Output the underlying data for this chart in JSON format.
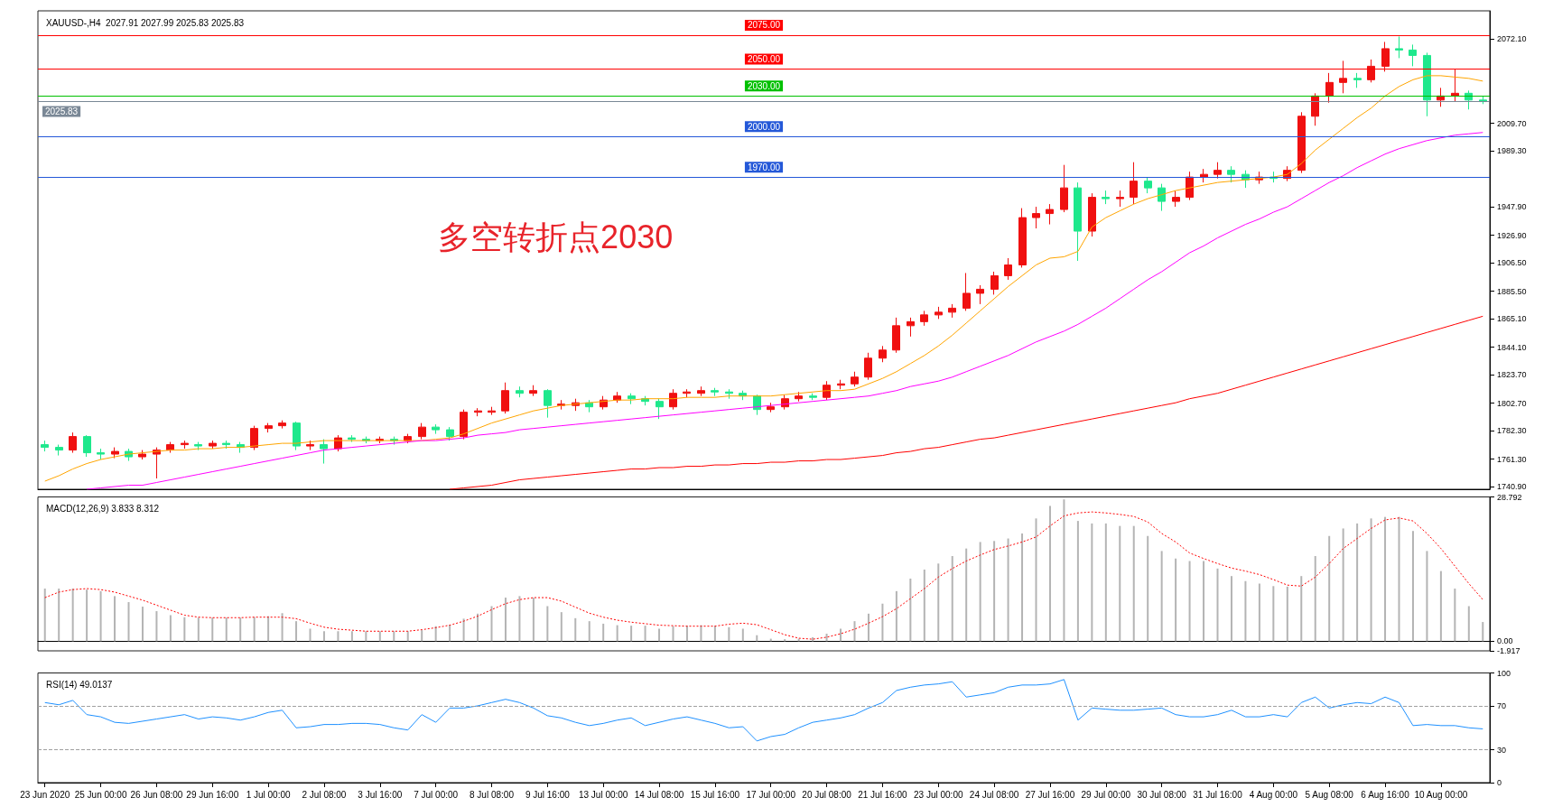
{
  "chart_data": [
    {
      "type": "candlestick",
      "title": "XAUUSD-,H4  2027.91 2027.99 2025.83 2025.83",
      "annotations": [
        "多空转折点2030"
      ],
      "tick_labels": "y",
      "colors": [
        "#1ee88c",
        "#1ee88c",
        "#f01010",
        "#1ee88c",
        "#1ee88c",
        "#f01010",
        "#1ee88c",
        "#f01010",
        "#f01010",
        "#f01010",
        "#f01010",
        "#1ee88c",
        "#f01010",
        "#1ee88c",
        "#1ee88c",
        "#f01010",
        "#f01010",
        "#f01010",
        "#1ee88c",
        "#f01010",
        "#1ee88c",
        "#f01010",
        "#1ee88c",
        "#1ee88c",
        "#f01010",
        "#1ee88c",
        "#f01010",
        "#f01010",
        "#1ee88c",
        "#1ee88c",
        "#f01010",
        "#f01010",
        "#f01010",
        "#f01010",
        "#1ee88c",
        "#f01010",
        "#1ee88c",
        "#f01010",
        "#f01010",
        "#1ee88c",
        "#f01010",
        "#f01010",
        "#1ee88c",
        "#1ee88c",
        "#1ee88c",
        "#f01010",
        "#f01010",
        "#f01010",
        "#1ee88c",
        "#1ee88c",
        "#1ee88c",
        "#1ee88c",
        "#f01010",
        "#f01010",
        "#f01010",
        "#1ee88c",
        "#f01010",
        "#f01010",
        "#f01010",
        "#f01010",
        "#f01010",
        "#f01010",
        "#f01010",
        "#f01010",
        "#f01010",
        "#f01010",
        "#f01010",
        "#f01010",
        "#f01010",
        "#f01010",
        "#f01010",
        "#f01010",
        "#f01010",
        "#f01010",
        "#1ee88c",
        "#f01010",
        "#1ee88c",
        "#f01010",
        "#f01010",
        "#1ee88c",
        "#1ee88c",
        "#f01010",
        "#f01010",
        "#f01010",
        "#f01010",
        "#1ee88c",
        "#1ee88c",
        "#f01010",
        "#1ee88c",
        "#f01010",
        "#f01010",
        "#f01010",
        "#f01010",
        "#f01010",
        "#1ee88c",
        "#f01010",
        "#f01010",
        "#1ee88c",
        "#1ee88c",
        "#1ee88c",
        "#f01010",
        "#f01010",
        "#1ee88c",
        "#1ee88c"
      ],
      "categories": [
        null,
        null,
        null,
        null,
        null,
        null,
        null,
        null,
        null,
        null,
        null,
        null,
        null,
        null,
        null,
        null,
        null,
        null,
        null,
        null,
        null,
        null,
        null,
        null,
        null,
        null,
        null,
        null,
        null,
        null,
        null,
        null,
        null,
        null,
        null,
        null,
        null,
        null,
        null,
        null,
        null,
        null,
        null,
        null,
        null,
        null,
        null,
        null,
        null,
        null,
        null,
        null,
        null,
        null,
        null,
        null,
        null,
        null,
        null,
        null,
        null,
        null,
        null,
        null,
        null,
        null,
        null,
        null,
        null,
        null,
        null,
        null,
        null,
        null,
        null,
        null,
        null,
        null,
        null,
        null,
        null,
        null,
        null,
        null,
        null,
        null,
        null,
        null,
        null,
        null,
        null,
        null,
        null,
        null,
        null,
        null,
        null,
        null,
        null,
        null,
        null,
        null,
        null,
        null
      ],
      "ohlc": [
        [
          1772,
          1775,
          1767,
          1770
        ],
        [
          1770,
          1772,
          1764,
          1768
        ],
        [
          1768,
          1781,
          1766,
          1778
        ],
        [
          1778,
          1779,
          1763,
          1766
        ],
        [
          1766,
          1769,
          1761,
          1765
        ],
        [
          1765,
          1770,
          1762,
          1767
        ],
        [
          1767,
          1769,
          1760,
          1763
        ],
        [
          1763,
          1768,
          1761,
          1765
        ],
        [
          1765,
          1770,
          1747,
          1768
        ],
        [
          1768,
          1774,
          1766,
          1772
        ],
        [
          1772,
          1775,
          1769,
          1773
        ],
        [
          1772,
          1774,
          1768,
          1771
        ],
        [
          1771,
          1775,
          1769,
          1773
        ],
        [
          1773,
          1775,
          1769,
          1772
        ],
        [
          1772,
          1774,
          1766,
          1770
        ],
        [
          1770,
          1786,
          1768,
          1784
        ],
        [
          1784,
          1788,
          1781,
          1786
        ],
        [
          1786,
          1790,
          1784,
          1788
        ],
        [
          1788,
          1789,
          1768,
          1771
        ],
        [
          1771,
          1775,
          1768,
          1772
        ],
        [
          1772,
          1776,
          1758,
          1769
        ],
        [
          1769,
          1779,
          1767,
          1777
        ],
        [
          1777,
          1779,
          1774,
          1776
        ],
        [
          1776,
          1778,
          1773,
          1775
        ],
        [
          1775,
          1778,
          1773,
          1776
        ],
        [
          1776,
          1778,
          1772,
          1775
        ],
        [
          1775,
          1780,
          1773,
          1778
        ],
        [
          1778,
          1788,
          1776,
          1785
        ],
        [
          1785,
          1787,
          1780,
          1783
        ],
        [
          1783,
          1785,
          1775,
          1778
        ],
        [
          1778,
          1798,
          1776,
          1796
        ],
        [
          1796,
          1799,
          1793,
          1797
        ],
        [
          1796,
          1800,
          1794,
          1797
        ],
        [
          1797,
          1818,
          1795,
          1812
        ],
        [
          1812,
          1815,
          1807,
          1810
        ],
        [
          1810,
          1816,
          1808,
          1812
        ],
        [
          1812,
          1813,
          1792,
          1801
        ],
        [
          1801,
          1805,
          1798,
          1802
        ],
        [
          1801,
          1806,
          1797,
          1803
        ],
        [
          1803,
          1805,
          1796,
          1800
        ],
        [
          1800,
          1808,
          1798,
          1805
        ],
        [
          1805,
          1811,
          1803,
          1808
        ],
        [
          1808,
          1810,
          1802,
          1806
        ],
        [
          1806,
          1808,
          1801,
          1804
        ],
        [
          1804,
          1806,
          1791,
          1800
        ],
        [
          1800,
          1813,
          1798,
          1810
        ],
        [
          1810,
          1813,
          1807,
          1811
        ],
        [
          1810,
          1815,
          1808,
          1812
        ],
        [
          1812,
          1814,
          1808,
          1811
        ],
        [
          1811,
          1813,
          1806,
          1810
        ],
        [
          1810,
          1812,
          1805,
          1808
        ],
        [
          1808,
          1809,
          1794,
          1798
        ],
        [
          1798,
          1803,
          1796,
          1800
        ],
        [
          1800,
          1809,
          1798,
          1806
        ],
        [
          1806,
          1811,
          1804,
          1808
        ],
        [
          1808,
          1810,
          1805,
          1807
        ],
        [
          1807,
          1819,
          1805,
          1816
        ],
        [
          1816,
          1820,
          1813,
          1817
        ],
        [
          1817,
          1826,
          1815,
          1822
        ],
        [
          1822,
          1840,
          1820,
          1836
        ],
        [
          1836,
          1845,
          1833,
          1842
        ],
        [
          1842,
          1866,
          1840,
          1860
        ],
        [
          1860,
          1866,
          1852,
          1863
        ],
        [
          1863,
          1871,
          1860,
          1868
        ],
        [
          1868,
          1874,
          1865,
          1870
        ],
        [
          1870,
          1876,
          1866,
          1873
        ],
        [
          1873,
          1899,
          1871,
          1884
        ],
        [
          1884,
          1890,
          1876,
          1887
        ],
        [
          1887,
          1900,
          1883,
          1897
        ],
        [
          1897,
          1910,
          1894,
          1905
        ],
        [
          1905,
          1947,
          1903,
          1940
        ],
        [
          1940,
          1948,
          1932,
          1943
        ],
        [
          1943,
          1950,
          1935,
          1946
        ],
        [
          1946,
          1979,
          1944,
          1962
        ],
        [
          1962,
          1966,
          1908,
          1930
        ],
        [
          1930,
          1958,
          1926,
          1955
        ],
        [
          1955,
          1960,
          1950,
          1954
        ],
        [
          1954,
          1960,
          1948,
          1955
        ],
        [
          1955,
          1981,
          1950,
          1967
        ],
        [
          1967,
          1970,
          1958,
          1962
        ],
        [
          1962,
          1965,
          1945,
          1952
        ],
        [
          1952,
          1960,
          1948,
          1955
        ],
        [
          1955,
          1974,
          1953,
          1970
        ],
        [
          1970,
          1976,
          1966,
          1972
        ],
        [
          1972,
          1981,
          1969,
          1975
        ],
        [
          1975,
          1978,
          1966,
          1972
        ],
        [
          1972,
          1975,
          1962,
          1968
        ],
        [
          1968,
          1974,
          1965,
          1970
        ],
        [
          1970,
          1974,
          1966,
          1969
        ],
        [
          1969,
          1978,
          1967,
          1975
        ],
        [
          1975,
          2018,
          1973,
          2015
        ],
        [
          2015,
          2032,
          2008,
          2030
        ],
        [
          2030,
          2047,
          2025,
          2040
        ],
        [
          2040,
          2056,
          2032,
          2043
        ],
        [
          2043,
          2047,
          2036,
          2042
        ],
        [
          2042,
          2057,
          2040,
          2052
        ],
        [
          2052,
          2070,
          2048,
          2065
        ],
        [
          2065,
          2074,
          2058,
          2064
        ],
        [
          2064,
          2068,
          2052,
          2060
        ],
        [
          2060,
          2062,
          2015,
          2027
        ],
        [
          2027,
          2036,
          2022,
          2030
        ],
        [
          2030,
          2050,
          2026,
          2032
        ],
        [
          2032,
          2034,
          2020,
          2027
        ],
        [
          2027,
          2030,
          2024,
          2025.83
        ]
      ],
      "series": [
        {
          "type": "line",
          "color": "#ffa500",
          "values": [
            1745,
            1749,
            1754,
            1758,
            1761,
            1763,
            1765,
            1766,
            1767,
            1768,
            1768,
            1769,
            1769,
            1770,
            1770,
            1771,
            1772,
            1773,
            1773,
            1774,
            1775,
            1775,
            1775,
            1775,
            1775,
            1775,
            1775,
            1775,
            1776,
            1777,
            1780,
            1784,
            1788,
            1791,
            1794,
            1797,
            1799,
            1801,
            1802,
            1803,
            1804,
            1805,
            1805,
            1806,
            1806,
            1806,
            1807,
            1807,
            1807,
            1808,
            1808,
            1808,
            1808,
            1809,
            1810,
            1811,
            1812,
            1812,
            1813,
            1817,
            1821,
            1826,
            1832,
            1838,
            1845,
            1853,
            1862,
            1871,
            1880,
            1889,
            1897,
            1905,
            1910,
            1911,
            1915,
            1933,
            1940,
            1945,
            1950,
            1954,
            1957,
            1960,
            1962,
            1964,
            1966,
            1967,
            1968,
            1969,
            1970,
            1972,
            1980,
            1990,
            1998,
            2006,
            2014,
            2021,
            2030,
            2037,
            2042,
            2045,
            2045,
            2044,
            2043,
            2041
          ]
        },
        {
          "type": "line",
          "color": "#ff00ff",
          "values": [
            null,
            null,
            null,
            1739,
            1740,
            1741,
            1742,
            1742,
            1744,
            1746,
            1748,
            1750,
            1752,
            1754,
            1756,
            1758,
            1760,
            1762,
            1764,
            1766,
            1768,
            1769,
            1770,
            1771,
            1772,
            1773,
            1774,
            1775,
            1775,
            1776,
            1777,
            1779,
            1780,
            1781,
            1783,
            1784,
            1785,
            1786,
            1787,
            1788,
            1789,
            1790,
            1791,
            1792,
            1793,
            1794,
            1795,
            1796,
            1797,
            1798,
            1799,
            1800,
            1801,
            1802,
            1803,
            1804,
            1805,
            1806,
            1807,
            1808,
            1810,
            1812,
            1815,
            1817,
            1819,
            1822,
            1826,
            1830,
            1834,
            1838,
            1843,
            1848,
            1852,
            1856,
            1861,
            1867,
            1873,
            1880,
            1887,
            1894,
            1900,
            1907,
            1914,
            1919,
            1925,
            1930,
            1935,
            1939,
            1944,
            1948,
            1954,
            1960,
            1966,
            1971,
            1977,
            1982,
            1987,
            1991,
            1994,
            1997,
            1999,
            2001,
            2002,
            2003
          ]
        },
        {
          "type": "line",
          "color": "#ff0000",
          "values": [
            null,
            null,
            null,
            null,
            null,
            null,
            null,
            null,
            null,
            null,
            null,
            null,
            null,
            null,
            null,
            null,
            null,
            null,
            null,
            null,
            null,
            null,
            null,
            null,
            null,
            null,
            null,
            null,
            null,
            1739,
            1740,
            1741,
            1742,
            1744,
            1746,
            1747,
            1748,
            1749,
            1750,
            1751,
            1752,
            1753,
            1754,
            1754,
            1755,
            1755,
            1756,
            1756,
            1757,
            1757,
            1758,
            1758,
            1759,
            1759,
            1760,
            1760,
            1761,
            1761,
            1762,
            1763,
            1764,
            1766,
            1767,
            1769,
            1770,
            1772,
            1774,
            1776,
            1777,
            1779,
            1781,
            1783,
            1785,
            1787,
            1789,
            1791,
            1793,
            1795,
            1797,
            1799,
            1801,
            1803,
            1806,
            1808,
            1810,
            1813,
            1816,
            1819,
            1822,
            1825,
            1828,
            1831,
            1834,
            1837,
            1840,
            1843,
            1846,
            1849,
            1852,
            1855,
            1858,
            1861,
            1864,
            1867
          ]
        }
      ],
      "ylim": [
        1739,
        2093
      ],
      "yticks": [
        {
          "value": 1740.9,
          "label": "1740.90"
        },
        {
          "value": 1761.3,
          "label": "1761.30"
        },
        {
          "value": 1782.3,
          "label": "1782.30"
        },
        {
          "value": 1802.7,
          "label": "1802.70"
        },
        {
          "value": 1823.7,
          "label": "1823.70"
        },
        {
          "value": 1844.1,
          "label": "1844.10"
        },
        {
          "value": 1865.1,
          "label": "1865.10"
        },
        {
          "value": 1885.5,
          "label": "1885.50"
        },
        {
          "value": 1906.5,
          "label": "1906.50"
        },
        {
          "value": 1926.9,
          "label": "1926.90"
        },
        {
          "value": 1947.9,
          "label": "1947.90"
        },
        {
          "value": 1989.3,
          "label": "1989.30"
        },
        {
          "value": 2009.7,
          "label": "2009.70"
        },
        {
          "value": 2072.1,
          "label": "2072.10"
        }
      ],
      "ref_lines": [
        {
          "axis": "y",
          "value": 2075,
          "label": "2075.00",
          "color": "#ff0000"
        },
        {
          "axis": "y",
          "value": 2050,
          "label": "2050.00",
          "color": "#ff0000"
        },
        {
          "axis": "y",
          "value": 2030,
          "label": "2030.00",
          "color": "#00c000"
        },
        {
          "axis": "y",
          "value": 2025.83,
          "label": "2025.83",
          "color": "#7a8896"
        },
        {
          "axis": "y",
          "value": 2000,
          "label": "2000.00",
          "color": "#2458d8"
        },
        {
          "axis": "y",
          "value": 1970,
          "label": "1970.00",
          "color": "#2458d8"
        }
      ]
    },
    {
      "type": "bar",
      "title": "MACD(12,26,9) 3.833 8.312",
      "tick_labels": "y",
      "categories": [
        null,
        null,
        null,
        null,
        null,
        null,
        null,
        null,
        null,
        null,
        null,
        null,
        null,
        null,
        null,
        null,
        null,
        null,
        null,
        null,
        null,
        null,
        null,
        null,
        null,
        null,
        null,
        null,
        null,
        null,
        null,
        null,
        null,
        null,
        null,
        null,
        null,
        null,
        null,
        null,
        null,
        null,
        null,
        null,
        null,
        null,
        null,
        null,
        null,
        null,
        null,
        null,
        null,
        null,
        null,
        null,
        null,
        null,
        null,
        null,
        null,
        null,
        null,
        null,
        null,
        null,
        null,
        null,
        null,
        null,
        null,
        null,
        null,
        null,
        null,
        null,
        null,
        null,
        null,
        null,
        null,
        null,
        null,
        null,
        null,
        null,
        null,
        null,
        null,
        null,
        null,
        null,
        null,
        null,
        null,
        null,
        null,
        null,
        null,
        null,
        null,
        null,
        null,
        null
      ],
      "series": [
        {
          "type": "bar",
          "color": "#b4b4b4",
          "values": [
            10.5,
            10.5,
            10.5,
            10.3,
            10,
            9,
            7.8,
            6.9,
            6,
            5.2,
            4.8,
            4.7,
            4.7,
            4.7,
            4.7,
            4.8,
            5,
            5.6,
            4,
            2.5,
            2,
            2,
            2,
            2,
            2,
            2,
            2,
            2.2,
            3,
            3.3,
            4.5,
            5.5,
            7,
            8.7,
            9,
            8.7,
            7,
            5.8,
            4.6,
            4,
            3.5,
            3.2,
            3.1,
            3.1,
            2.5,
            3,
            3.1,
            3.2,
            3.1,
            2.8,
            2.5,
            1.2,
            0.5,
            0.4,
            0.5,
            0.8,
            1.5,
            2.5,
            4,
            5.5,
            7.5,
            10,
            12.5,
            14.3,
            15.5,
            17,
            18.5,
            19.8,
            20,
            20.5,
            21.5,
            24.5,
            27,
            28.3,
            24,
            23.5,
            23.5,
            23,
            23,
            21,
            18,
            16.5,
            16,
            16,
            14.5,
            13,
            12,
            11.5,
            11,
            10.9,
            13,
            17,
            21,
            22.5,
            23.5,
            24.5,
            24.8,
            24.8,
            22,
            18,
            14,
            10.5,
            7,
            3.833
          ]
        },
        {
          "type": "line",
          "color": "#ff0000",
          "line_style": "dotted",
          "values": [
            8.7,
            9.8,
            10.3,
            10.5,
            10.3,
            9.8,
            9,
            8.2,
            7.2,
            6.2,
            5.2,
            4.8,
            4.7,
            4.7,
            4.7,
            4.8,
            4.8,
            4.8,
            4.5,
            3.6,
            2.8,
            2.4,
            2.2,
            2,
            2,
            2,
            2,
            2.3,
            2.7,
            3.2,
            4,
            5,
            6.3,
            7.5,
            8.3,
            8.7,
            8.7,
            8,
            6.8,
            5.6,
            4.8,
            4.2,
            3.8,
            3.5,
            3.2,
            3.1,
            3,
            3,
            3,
            3.4,
            3.6,
            3.3,
            2.3,
            1.3,
            0.6,
            0.4,
            0.8,
            1.5,
            2.4,
            3.6,
            4.9,
            6.5,
            8.5,
            10.5,
            12.8,
            14.5,
            16,
            17.2,
            18.3,
            19,
            19.8,
            20.8,
            23,
            25,
            25.6,
            25.8,
            25.6,
            25.3,
            24.9,
            23.8,
            21.5,
            19.8,
            17.6,
            16.5,
            15.5,
            14.6,
            14,
            13.3,
            12.3,
            11.2,
            11,
            12.8,
            15.5,
            18.5,
            20.5,
            22.5,
            24.2,
            24.6,
            24,
            21.5,
            18.5,
            15,
            11.5,
            8.312
          ]
        }
      ],
      "ylim": [
        -1.917,
        28.792
      ],
      "yticks": [
        {
          "value": -1.917,
          "label": "-1.917"
        },
        {
          "value": 0,
          "label": "0.00"
        },
        28.792
      ]
    },
    {
      "type": "line",
      "title": "RSI(14) 49.0137",
      "categories": [
        "23 Jun 2020",
        null,
        null,
        null,
        "25 Jun 00:00",
        null,
        null,
        null,
        "26 Jun 08:00",
        null,
        null,
        null,
        "29 Jun 16:00",
        null,
        null,
        null,
        "1 Jul 00:00",
        null,
        null,
        null,
        "2 Jul 08:00",
        null,
        null,
        null,
        "3 Jul 16:00",
        null,
        null,
        null,
        "7 Jul 00:00",
        null,
        null,
        null,
        "8 Jul 08:00",
        null,
        null,
        null,
        "9 Jul 16:00",
        null,
        null,
        null,
        "13 Jul 00:00",
        null,
        null,
        null,
        "14 Jul 08:00",
        null,
        null,
        null,
        "15 Jul 16:00",
        null,
        null,
        null,
        "17 Jul 00:00",
        null,
        null,
        null,
        "20 Jul 08:00",
        null,
        null,
        null,
        "21 Jul 16:00",
        null,
        null,
        null,
        "23 Jul 00:00",
        null,
        null,
        null,
        "24 Jul 08:00",
        null,
        null,
        null,
        "27 Jul 16:00",
        null,
        null,
        null,
        "29 Jul 00:00",
        null,
        null,
        null,
        "30 Jul 08:00",
        null,
        null,
        null,
        "31 Jul 16:00",
        null,
        null,
        null,
        "4 Aug 00:00",
        null,
        null,
        null,
        "5 Aug 08:00",
        null,
        null,
        null,
        "6 Aug 16:00",
        null,
        null,
        null,
        "10 Aug 00:00",
        null,
        null,
        null
      ],
      "series": [
        {
          "color": "#1e90ff",
          "values": [
            73,
            71,
            75,
            62,
            60,
            55,
            54,
            56,
            58,
            60,
            62,
            58,
            60,
            59,
            57,
            60,
            64,
            66,
            50,
            51,
            53,
            53,
            54,
            54,
            53,
            50,
            48,
            62,
            55,
            68,
            68,
            70,
            73,
            76,
            73,
            68,
            61,
            59,
            55,
            52,
            54,
            57,
            59,
            52,
            55,
            58,
            60,
            57,
            54,
            50,
            51,
            38,
            42,
            44,
            50,
            55,
            57,
            59,
            62,
            68,
            73,
            84,
            87,
            89,
            90,
            92,
            78,
            80,
            82,
            87,
            89,
            89,
            90,
            94,
            57,
            68,
            67,
            66,
            66,
            67,
            68,
            62,
            60,
            60,
            62,
            66,
            60,
            60,
            62,
            60,
            73,
            78,
            68,
            71,
            73,
            72,
            78,
            73,
            52,
            53,
            52,
            52,
            50,
            49.0137
          ]
        }
      ],
      "ylim": [
        0,
        100
      ],
      "yticks": [
        0,
        30,
        70,
        100
      ],
      "ref_lines": [
        {
          "axis": "y",
          "value": 70,
          "color": "#a0a0a0",
          "line_style": "dashed"
        },
        {
          "axis": "y",
          "value": 30,
          "color": "#a0a0a0",
          "line_style": "dashed"
        }
      ]
    }
  ]
}
